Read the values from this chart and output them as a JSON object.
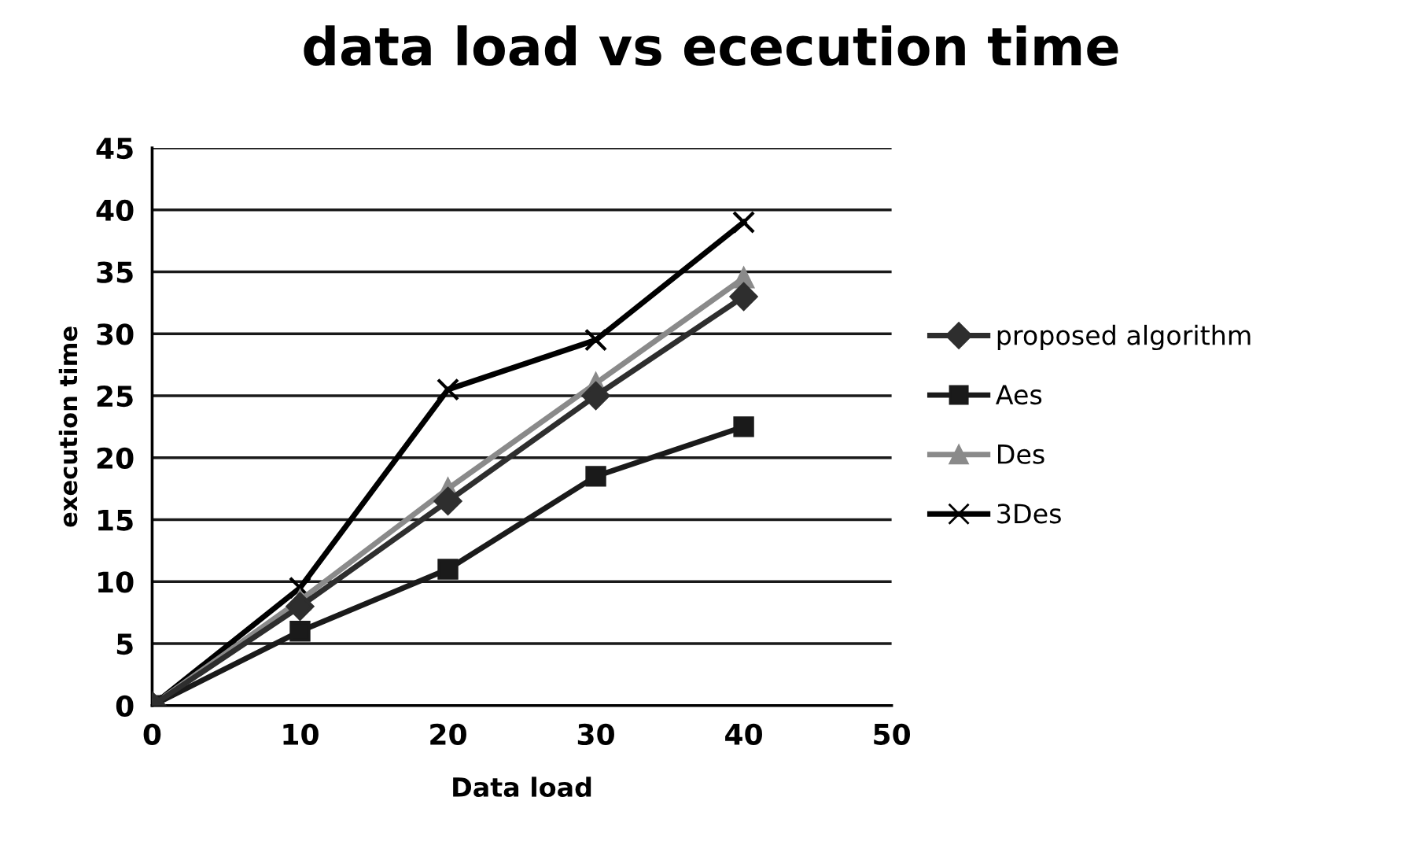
{
  "chart_data": {
    "type": "line",
    "title": "data load vs ececution time",
    "xlabel": "Data load",
    "ylabel": "execution time",
    "x": [
      0,
      10,
      20,
      30,
      40
    ],
    "series": [
      {
        "name": "proposed algorithm",
        "color": "#2e2e2e",
        "marker": "diamond",
        "values": [
          0,
          8,
          16.5,
          25,
          33
        ]
      },
      {
        "name": "Aes",
        "color": "#1a1a1a",
        "marker": "square",
        "values": [
          0,
          6,
          11,
          18.5,
          22.5
        ]
      },
      {
        "name": "Des",
        "color": "#8a8a8a",
        "marker": "triangle",
        "values": [
          0,
          8.5,
          17.5,
          26,
          34.5
        ]
      },
      {
        "name": "3Des",
        "color": "#000000",
        "marker": "cross",
        "values": [
          0,
          9.5,
          25.5,
          29.5,
          39
        ]
      }
    ],
    "xlim": [
      0,
      50
    ],
    "xticks": [
      0,
      10,
      20,
      30,
      40,
      50
    ],
    "ylim": [
      0,
      45
    ],
    "yticks": [
      0,
      5,
      10,
      15,
      20,
      25,
      30,
      35,
      40,
      45
    ],
    "grid": "y",
    "legend": "right",
    "line_style": "solid"
  }
}
